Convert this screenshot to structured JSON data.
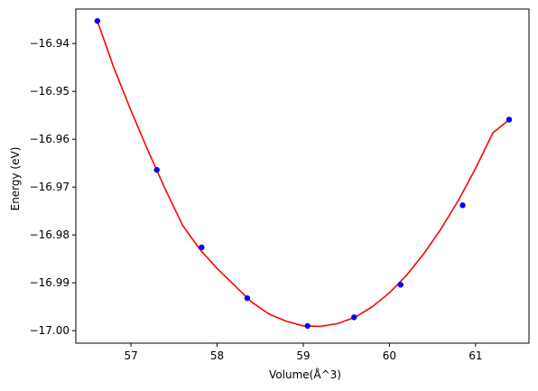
{
  "chart_data": {
    "type": "line",
    "title": "",
    "xlabel": "Volume(Å^3)",
    "ylabel": "Energy (eV)",
    "xlim": [
      56.36,
      61.62
    ],
    "ylim": [
      -17.0026,
      -16.9328
    ],
    "x_ticks": [
      57,
      58,
      59,
      60,
      61
    ],
    "y_ticks": [
      -16.94,
      -16.95,
      -16.96,
      -16.97,
      -16.98,
      -16.99,
      -17.0
    ],
    "y_tick_labels": [
      "−16.94",
      "−16.95",
      "−16.96",
      "−16.97",
      "−16.98",
      "−16.99",
      "−17.00"
    ],
    "grid": false,
    "series": [
      {
        "kind": "scatter",
        "color": "#0000ff",
        "x": [
          56.61,
          57.3,
          57.82,
          58.35,
          59.05,
          59.59,
          60.13,
          60.85,
          61.39
        ],
        "y": [
          -16.9353,
          -16.9664,
          -16.9826,
          -16.9932,
          -16.999,
          -16.9972,
          -16.9904,
          -16.9738,
          -16.9559
        ]
      },
      {
        "kind": "fit-curve",
        "color": "#ff0000",
        "x": [
          56.61,
          56.8,
          57.0,
          57.2,
          57.4,
          57.6,
          57.8,
          58.0,
          58.2,
          58.4,
          58.6,
          58.8,
          59.0,
          59.2,
          59.4,
          59.6,
          59.8,
          60.0,
          60.2,
          60.4,
          60.6,
          60.8,
          61.0,
          61.2,
          61.39
        ],
        "y": [
          -16.9353,
          -16.945,
          -16.954,
          -16.9625,
          -16.9705,
          -16.978,
          -16.983,
          -16.987,
          -16.9905,
          -16.994,
          -16.9965,
          -16.998,
          -16.999,
          -16.9991,
          -16.9985,
          -16.9972,
          -16.995,
          -16.9921,
          -16.9884,
          -16.9839,
          -16.9787,
          -16.9728,
          -16.9661,
          -16.9587,
          -16.9559
        ]
      }
    ]
  }
}
